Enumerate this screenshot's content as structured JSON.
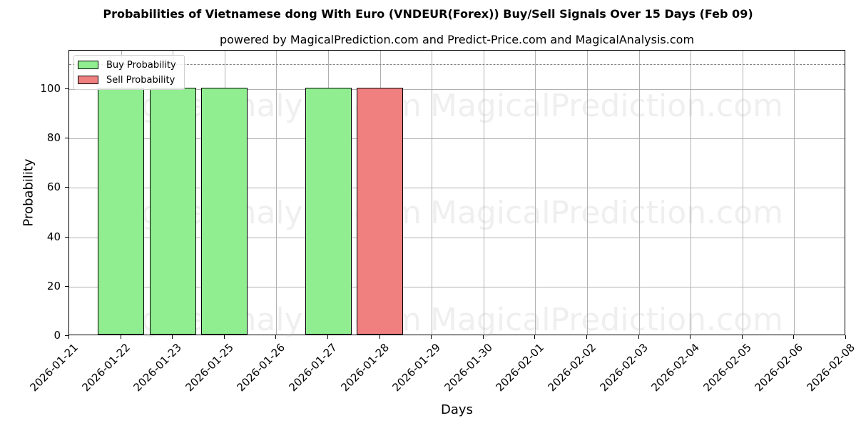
{
  "chart_data": {
    "type": "bar",
    "title": "Probabilities of Vietnamese dong With Euro (VNDEUR(Forex)) Buy/Sell Signals Over 15 Days (Feb 09)",
    "subtitle": "powered by MagicalPrediction.com and Predict-Price.com and MagicalAnalysis.com",
    "xlabel": "Days",
    "ylabel": "Probability",
    "ylim": [
      0,
      116
    ],
    "yticks": [
      0,
      20,
      40,
      60,
      80,
      100
    ],
    "xtick_labels": [
      "2026-01-21",
      "2026-01-22",
      "2026-01-23",
      "2026-01-25",
      "2026-01-26",
      "2026-01-27",
      "2026-01-28",
      "2026-01-29",
      "2026-01-30",
      "2026-02-01",
      "2026-02-02",
      "2026-02-03",
      "2026-02-04",
      "2026-02-05",
      "2026-02-06",
      "2026-02-08"
    ],
    "grid": true,
    "legend_position": "upper left",
    "threshold_line": {
      "y": 110,
      "style": "dashed",
      "color": "#808080"
    },
    "series": [
      {
        "name": "Buy Probability",
        "color": "#90ee90",
        "points": [
          {
            "x": "2026-01-22",
            "value": 100
          },
          {
            "x": "2026-01-23",
            "value": 100
          },
          {
            "x": "2026-01-25",
            "value": 100
          },
          {
            "x": "2026-01-27",
            "value": 100
          }
        ]
      },
      {
        "name": "Sell Probability",
        "color": "#f08080",
        "points": [
          {
            "x": "2026-01-28",
            "value": 100
          }
        ]
      }
    ],
    "watermarks": [
      "MagicalAnalysis.com",
      "MagicalPrediction.com"
    ]
  },
  "legend": {
    "buy_label": "Buy Probability",
    "sell_label": "Sell Probability"
  },
  "colors": {
    "buy": "#90ee90",
    "sell": "#f08080"
  }
}
